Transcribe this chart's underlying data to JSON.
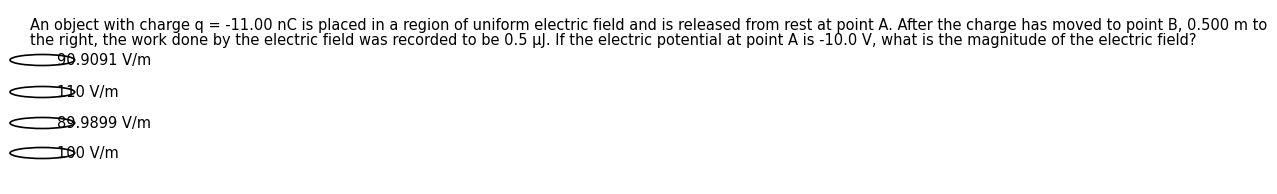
{
  "question_line1": "An object with charge q = -11.00 nC is placed in a region of uniform electric field and is released from rest at point A. After the charge has moved to point B, 0.500 m to",
  "question_line2": "the right, the work done by the electric field was recorded to be 0.5 μJ. If the electric potential at point A is -10.0 V, what is the magnitude of the electric field?",
  "options": [
    "90.9091 V/m",
    "110 V/m",
    "89.9899 V/m",
    "100 V/m"
  ],
  "background_color": "#ffffff",
  "text_color": "#000000",
  "font_size": 10.5,
  "option_font_size": 10.5
}
